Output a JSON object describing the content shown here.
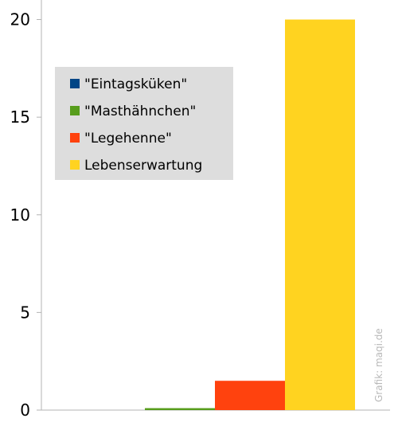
{
  "chart_data": {
    "type": "bar",
    "categories": [
      "\"Eintagsküken\"",
      "\"Masthähnchen\"",
      "\"Legehenne\"",
      "Lebenserwartung"
    ],
    "values": [
      0,
      0.1,
      1.5,
      20
    ],
    "colors": [
      "#004586",
      "#579d1c",
      "#ff420e",
      "#ffd320"
    ],
    "legend": {
      "placement": "top-left",
      "entries": [
        "\"Eintagsküken\"",
        "\"Masthähnchen\"",
        "\"Legehenne\"",
        "Lebenserwartung"
      ]
    },
    "y_ticks": [
      0,
      5,
      10,
      15,
      20
    ],
    "y_tick_labels": [
      "0",
      "5",
      "10",
      "15",
      "20"
    ],
    "ylim": [
      0,
      21
    ],
    "grid": false
  },
  "credit": "Grafik: maqi.de"
}
